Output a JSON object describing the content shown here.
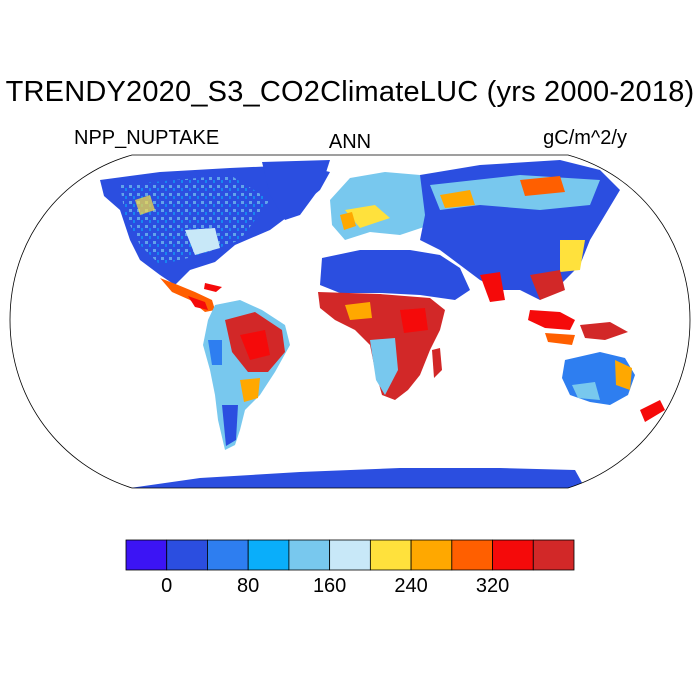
{
  "title": "TRENDY2020_S3_CO2ClimateLUC (yrs 2000-2018)",
  "subtitle_left": "NPP_NUPTAKE",
  "subtitle_center": "ANN",
  "subtitle_right": "gC/m^2/y",
  "projection": "Robinson",
  "colorbar": {
    "colors": [
      "#3c14f5",
      "#2b4ee0",
      "#2e7ef0",
      "#0aaefa",
      "#78c8ee",
      "#c8e8f8",
      "#ffe13c",
      "#ffa800",
      "#ff5f00",
      "#f50a0a",
      "#d22828"
    ],
    "tick_values": [
      0,
      80,
      160,
      240,
      320
    ],
    "tick_labels": [
      "0",
      "80",
      "160",
      "240",
      "320"
    ],
    "levels": [
      0,
      40,
      80,
      120,
      160,
      200,
      240,
      280,
      320,
      360
    ]
  }
}
